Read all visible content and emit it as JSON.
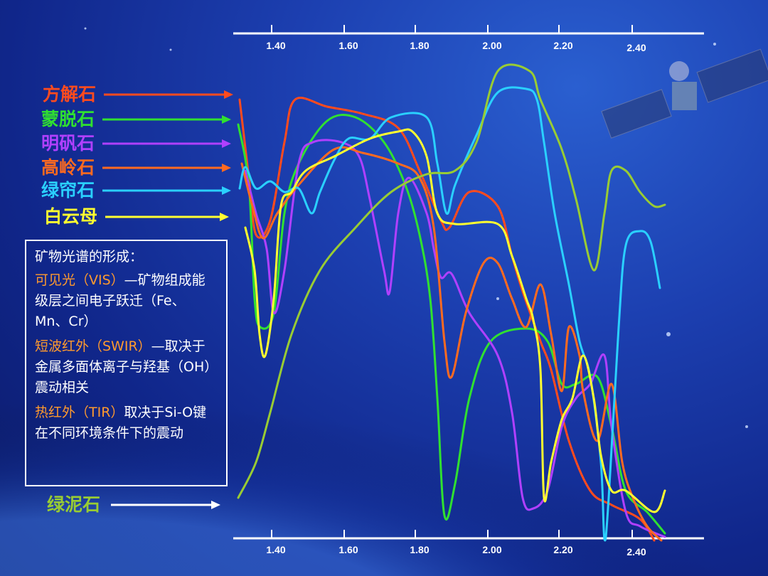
{
  "axis_labels": [
    "1.40",
    "1.60",
    "1.80",
    "2.00",
    "2.20",
    "2.40"
  ],
  "minerals": [
    {
      "name": "方解石",
      "color": "#ff4b1e"
    },
    {
      "name": "蒙脱石",
      "color": "#30e030"
    },
    {
      "name": "明矾石",
      "color": "#b040ff"
    },
    {
      "name": "高岭石",
      "color": "#ff6a20"
    },
    {
      "name": "绿帘石",
      "color": "#2ad0ff"
    },
    {
      "name": "白云母",
      "color": "#ffff30"
    },
    {
      "name": "绿泥石",
      "color": "#99cc33"
    }
  ],
  "info_box": {
    "title": "矿物光谱的形成：",
    "items": [
      {
        "label": "可见光（VIS）",
        "text": "—矿物组成能级层之间电子跃迁（Fe、Mn、Cr）"
      },
      {
        "label": "短波红外（SWIR）",
        "text": "—取决于金属多面体离子与羟基（OH）震动相关"
      },
      {
        "label": "热红外（TIR）",
        "text": "取决于Si-O键在不同环境条件下的震动"
      }
    ]
  }
}
